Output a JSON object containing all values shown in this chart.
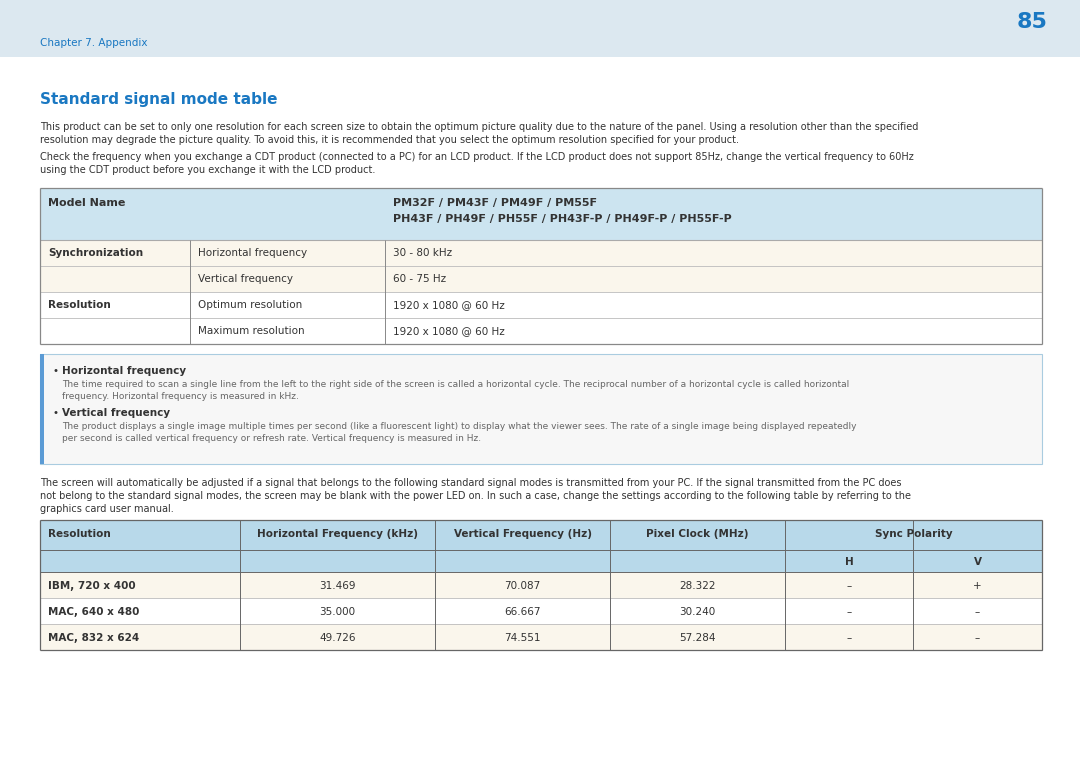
{
  "page_number": "85",
  "chapter_label": "Chapter 7. Appendix",
  "section_title": "Standard signal mode table",
  "intro_text1_line1": "This product can be set to only one resolution for each screen size to obtain the optimum picture quality due to the nature of the panel. Using a resolution other than the specified",
  "intro_text1_line2": "resolution may degrade the picture quality. To avoid this, it is recommended that you select the optimum resolution specified for your product.",
  "intro_text2_line1": "Check the frequency when you exchange a CDT product (connected to a PC) for an LCD product. If the LCD product does not support 85Hz, change the vertical frequency to 60Hz",
  "intro_text2_line2": "using the CDT product before you exchange it with the LCD product.",
  "table1_header_bg": "#cce4f0",
  "table1_row_bg_odd": "#faf6ec",
  "table1_row_bg_even": "#ffffff",
  "model_name_line1": "PM32F / PM43F / PM49F / PM55F",
  "model_name_line2": "PH43F / PH49F / PH55F / PH43F-P / PH49F-P / PH55F-P",
  "table1_rows": [
    [
      "Synchronization",
      "Horizontal frequency",
      "30 - 80 kHz"
    ],
    [
      "",
      "Vertical frequency",
      "60 - 75 Hz"
    ],
    [
      "Resolution",
      "Optimum resolution",
      "1920 x 1080 @ 60 Hz"
    ],
    [
      "",
      "Maximum resolution",
      "1920 x 1080 @ 60 Hz"
    ]
  ],
  "note_box_border": "#5b9bd5",
  "notes": [
    {
      "title": "Horizontal frequency",
      "body1": "The time required to scan a single line from the left to the right side of the screen is called a horizontal cycle. The reciprocal number of a horizontal cycle is called horizontal",
      "body2": "frequency. Horizontal frequency is measured in kHz."
    },
    {
      "title": "Vertical frequency",
      "body1": "The product displays a single image multiple times per second (like a fluorescent light) to display what the viewer sees. The rate of a single image being displayed repeatedly",
      "body2": "per second is called vertical frequency or refresh rate. Vertical frequency is measured in Hz."
    }
  ],
  "middle_text_line1": "The screen will automatically be adjusted if a signal that belongs to the following standard signal modes is transmitted from your PC. If the signal transmitted from the PC does",
  "middle_text_line2": "not belong to the standard signal modes, the screen may be blank with the power LED on. In such a case, change the settings according to the following table by referring to the",
  "middle_text_line3": "graphics card user manual.",
  "table2_header_bg": "#b8d9ea",
  "table2_row_bg1": "#faf6ec",
  "table2_row_bg2": "#ffffff",
  "table2_rows": [
    [
      "IBM, 720 x 400",
      "31.469",
      "70.087",
      "28.322",
      "–",
      "+"
    ],
    [
      "MAC, 640 x 480",
      "35.000",
      "66.667",
      "30.240",
      "–",
      "–"
    ],
    [
      "MAC, 832 x 624",
      "49.726",
      "74.551",
      "57.284",
      "–",
      "–"
    ]
  ],
  "text_color_dark": "#333333",
  "text_color_blue": "#1a78c2",
  "text_color_gray": "#666666",
  "header_bg_top": "#dce8f0",
  "page_bg": "#ffffff"
}
